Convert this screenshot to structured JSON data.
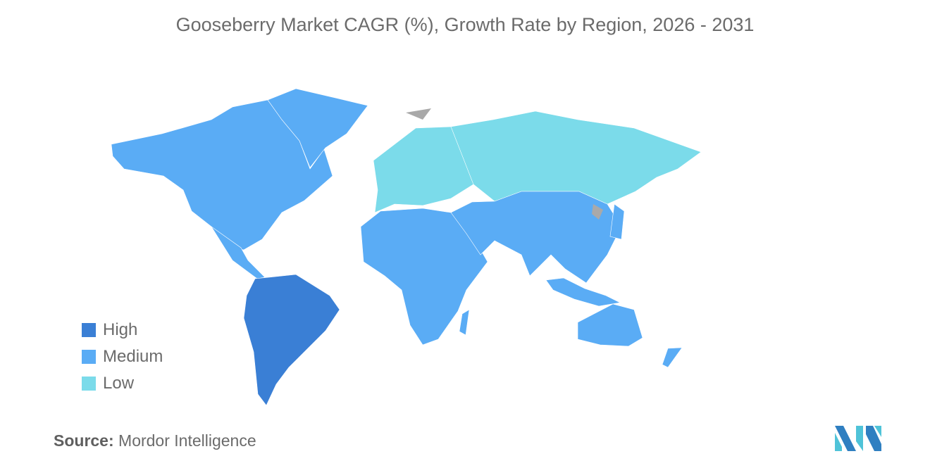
{
  "title": "Gooseberry Market CAGR (%), Growth Rate by Region, 2026 - 2031",
  "legend": [
    {
      "label": "High",
      "color": "#3a7fd5"
    },
    {
      "label": "Medium",
      "color": "#5aacf5"
    },
    {
      "label": "Low",
      "color": "#7bdbea"
    }
  ],
  "no_data_color": "#a9a9a9",
  "regions": {
    "north_america": "Medium",
    "greenland": "Medium",
    "south_america": "High",
    "europe": "Low",
    "russia": "Low",
    "africa": "Medium",
    "middle_east_asia": "Medium",
    "asia_pacific": "Medium",
    "australia": "Medium",
    "new_zealand": "Medium",
    "japan": "Medium"
  },
  "source": {
    "label": "Source:",
    "value": "Mordor Intelligence"
  }
}
